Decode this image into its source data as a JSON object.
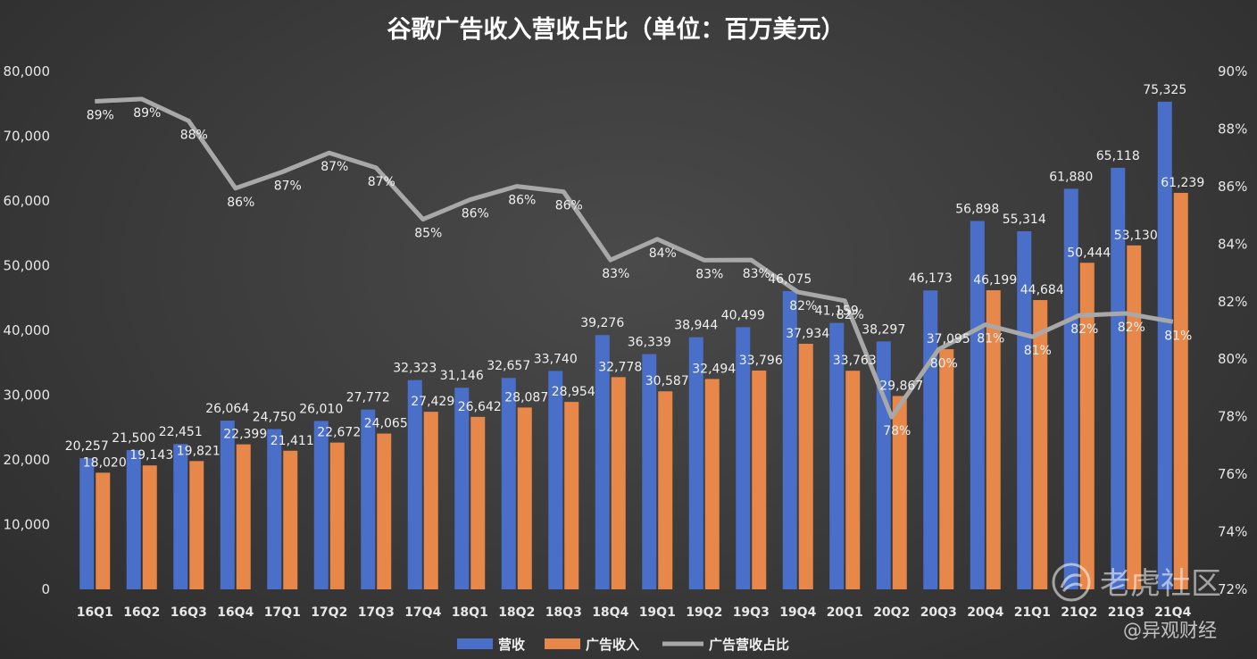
{
  "watermark": {
    "brand": "老虎社区",
    "handle": "@异观财经",
    "icon": "tiger-logo-icon"
  },
  "chart_data": {
    "type": "bar",
    "title": "谷歌广告收入营收占比（单位：百万美元）",
    "categories": [
      "16Q1",
      "16Q2",
      "16Q3",
      "16Q4",
      "17Q1",
      "17Q2",
      "17Q3",
      "17Q4",
      "18Q1",
      "18Q2",
      "18Q3",
      "18Q4",
      "19Q1",
      "19Q2",
      "19Q3",
      "19Q4",
      "20Q1",
      "20Q2",
      "20Q3",
      "20Q4",
      "21Q1",
      "21Q2",
      "21Q3",
      "21Q4"
    ],
    "series": [
      {
        "name": "营收",
        "color": "#4a6fc9",
        "values": [
          20257,
          21500,
          22451,
          26064,
          24750,
          26010,
          27772,
          32323,
          31146,
          32657,
          33740,
          39276,
          36339,
          38944,
          40499,
          46075,
          41159,
          38297,
          46173,
          56898,
          55314,
          61880,
          65118,
          75325
        ],
        "labels": [
          "20,257",
          "21,500",
          "22,451",
          "26,064",
          "24,750",
          "26,010",
          "27,772",
          "32,323",
          "31,146",
          "32,657",
          "33,740",
          "39,276",
          "36,339",
          "38,944",
          "40,499",
          "46,075",
          "41,159",
          "38,297",
          "46,173",
          "56,898",
          "55,314",
          "61,880",
          "65,118",
          "75,325"
        ]
      },
      {
        "name": "广告收入",
        "color": "#e8874a",
        "values": [
          18020,
          19143,
          19821,
          22399,
          21411,
          22672,
          24065,
          27429,
          26642,
          28087,
          28954,
          32778,
          30587,
          32494,
          33796,
          37934,
          33763,
          29867,
          37095,
          46199,
          44684,
          50444,
          53130,
          61239
        ],
        "labels": [
          "18,020",
          "19,143",
          "19,821",
          "22,399",
          "21,411",
          "22,672",
          "24,065",
          "27,429",
          "26,642",
          "28,087",
          "28,954",
          "32,778",
          "30,587",
          "32,494",
          "33,796",
          "37,934",
          "33,763",
          "29,867",
          "37,095",
          "46,199",
          "44,684",
          "50,444",
          "53,130",
          "61,239"
        ]
      },
      {
        "name": "广告营收占比",
        "type": "line",
        "color": "#a8a8a8",
        "axis": "right",
        "values": [
          88.96,
          89.04,
          88.28,
          85.94,
          86.51,
          87.17,
          86.65,
          84.86,
          85.54,
          86.01,
          85.82,
          83.45,
          84.17,
          83.44,
          83.45,
          82.33,
          82.03,
          77.99,
          80.34,
          81.2,
          80.78,
          81.52,
          81.59,
          81.3
        ],
        "labels": [
          "89%",
          "89%",
          "88%",
          "86%",
          "87%",
          "87%",
          "87%",
          "85%",
          "86%",
          "86%",
          "86%",
          "83%",
          "84%",
          "83%",
          "83%",
          "82%",
          "82%",
          "78%",
          "80%",
          "81%",
          "81%",
          "82%",
          "82%",
          "81%"
        ]
      }
    ],
    "y_left": {
      "min": 0,
      "max": 80000,
      "ticks": [
        "0",
        "10,000",
        "20,000",
        "30,000",
        "40,000",
        "50,000",
        "60,000",
        "70,000",
        "80,000"
      ]
    },
    "y_right": {
      "min": 72,
      "max": 90,
      "ticks": [
        "72%",
        "74%",
        "76%",
        "78%",
        "80%",
        "82%",
        "84%",
        "86%",
        "88%",
        "90%"
      ]
    },
    "grid": false,
    "legend": "bottom"
  }
}
